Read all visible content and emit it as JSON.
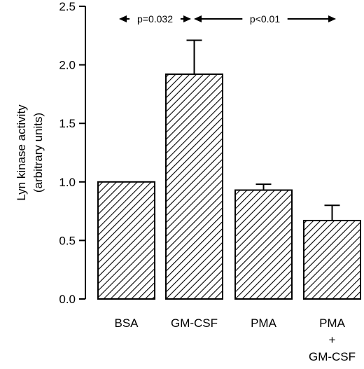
{
  "chart_data": {
    "type": "bar",
    "ylabel_line1": "Lyn kinase activity",
    "ylabel_line2": "(arbitrary units)",
    "ylim": [
      0,
      2.5
    ],
    "yticks": [
      "0.0",
      "0.5",
      "1.0",
      "1.5",
      "2.0",
      "2.5"
    ],
    "ytick_values": [
      0,
      0.5,
      1.0,
      1.5,
      2.0,
      2.5
    ],
    "categories": [
      {
        "lines": [
          "BSA"
        ]
      },
      {
        "lines": [
          "GM-CSF"
        ]
      },
      {
        "lines": [
          "PMA"
        ]
      },
      {
        "lines": [
          "PMA",
          "+",
          "GM-CSF"
        ]
      }
    ],
    "values": [
      1.0,
      1.92,
      0.93,
      0.67
    ],
    "errors": [
      0,
      0.29,
      0.05,
      0.13
    ],
    "bar_fill": "diagonal hatch",
    "annotations": [
      {
        "text": "p=0.032",
        "from_bar": 0,
        "to_bar": 1
      },
      {
        "text": "p<0.01",
        "from_bar": 1,
        "to_bar": 3
      }
    ]
  }
}
